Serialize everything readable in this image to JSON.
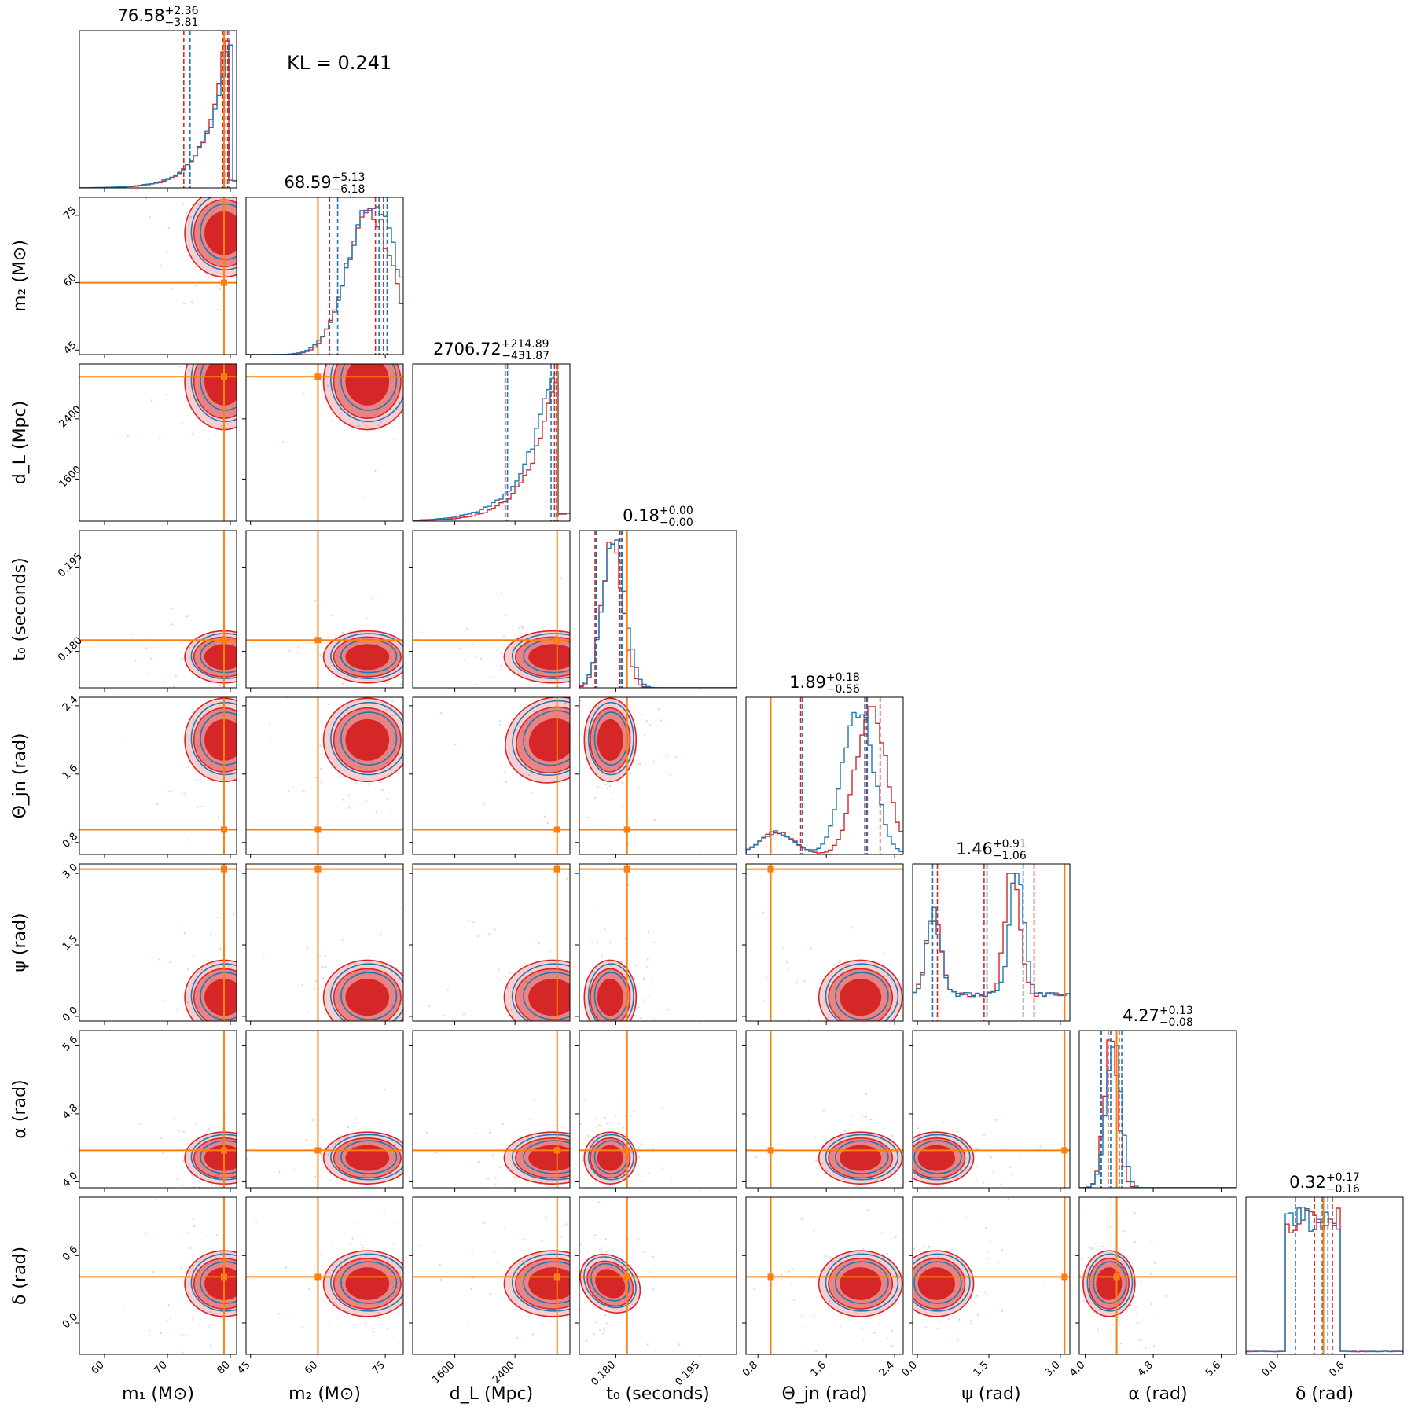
{
  "figure": {
    "annotation": "KL = 0.241"
  },
  "chart_data": {
    "type": "corner",
    "colors": {
      "series_a": "#1f77b4",
      "series_b": "#d62728",
      "truth": "#ff7f0e"
    },
    "params": [
      {
        "key": "m1",
        "label": "m₁ (M⊙)",
        "range": [
          56,
          81
        ],
        "ticks": [
          60,
          70,
          80
        ],
        "tick_labels": [
          "60",
          "70",
          "80"
        ],
        "title_value": "76.58",
        "title_plus": "+2.36",
        "title_minus": "−3.81",
        "truth": 79.0,
        "q_red": [
          72.6,
          78.8,
          79.6
        ],
        "q_blue": [
          73.6,
          79.3,
          79.9
        ],
        "mode": 79.0,
        "width": 3.2
      },
      {
        "key": "m2",
        "label": "m₂ (M⊙)",
        "range": [
          44,
          79
        ],
        "ticks": [
          45,
          60,
          75
        ],
        "tick_labels": [
          "45",
          "60",
          "75"
        ],
        "title_value": "68.59",
        "title_plus": "+5.13",
        "title_minus": "−6.18",
        "truth": 60.0,
        "q_red": [
          62.6,
          72.8,
          74.6
        ],
        "q_blue": [
          64.4,
          73.6,
          75.4
        ],
        "mode": 71.0,
        "width": 5.0
      },
      {
        "key": "dl",
        "label": "d_L (Mpc)",
        "range": [
          1040,
          3130
        ],
        "ticks": [
          1600,
          2400
        ],
        "tick_labels": [
          "1600",
          "2400"
        ],
        "title_value": "2706.72",
        "title_plus": "+214.89",
        "title_minus": "−431.87",
        "truth": 2960,
        "q_red": [
          2270,
          2925,
          2970
        ],
        "q_blue": [
          2300,
          2880,
          2950
        ],
        "mode": 2900,
        "width": 330
      },
      {
        "key": "t0",
        "label": "t₀ (seconds)",
        "range": [
          0.1735,
          0.2015
        ],
        "ticks": [
          0.18,
          0.195
        ],
        "tick_labels": [
          "0.180",
          "0.195"
        ],
        "title_value": "0.18",
        "title_plus": "+0.00",
        "title_minus": "−0.00",
        "truth": 0.182,
        "q_red": [
          0.1763,
          0.1807,
          0.181
        ],
        "q_blue": [
          0.1765,
          0.181,
          0.1812
        ],
        "mode": 0.179,
        "width": 0.0018
      },
      {
        "key": "theta",
        "label": "Θ_jn (rad)",
        "range": [
          0.66,
          2.5
        ],
        "ticks": [
          0.8,
          1.6,
          2.4
        ],
        "tick_labels": [
          "0.8",
          "1.6",
          "2.4"
        ],
        "title_value": "1.89",
        "title_plus": "+0.18",
        "title_minus": "−0.56",
        "truth": 0.95,
        "q_red": [
          1.3,
          2.07,
          2.23
        ],
        "q_blue": [
          1.32,
          2.05,
          2.08
        ],
        "mode": 2.0,
        "width": 0.25
      },
      {
        "key": "psi",
        "label": "ψ (rad)",
        "range": [
          -0.1,
          3.2
        ],
        "ticks": [
          0.0,
          1.5,
          3.0
        ],
        "tick_labels": [
          "0.0",
          "1.5",
          "3.0"
        ],
        "title_value": "1.46",
        "title_plus": "+0.91",
        "title_minus": "−1.06",
        "truth": 3.09,
        "q_red": [
          0.42,
          1.4,
          2.45
        ],
        "q_blue": [
          0.32,
          1.46,
          2.22
        ],
        "mode": 0.4,
        "width": 0.4
      },
      {
        "key": "alpha",
        "label": "α (rad)",
        "range": [
          3.93,
          5.78
        ],
        "ticks": [
          4.0,
          4.8,
          5.6
        ],
        "tick_labels": [
          "4.0",
          "4.8",
          "5.6"
        ],
        "title_value": "4.27",
        "title_plus": "+0.13",
        "title_minus": "−0.08",
        "truth": 4.37,
        "q_red": [
          4.18,
          4.27,
          4.4
        ],
        "q_blue": [
          4.19,
          4.3,
          4.43
        ],
        "mode": 4.28,
        "width": 0.08
      },
      {
        "key": "delta",
        "label": "δ (rad)",
        "range": [
          -0.28,
          1.12
        ],
        "ticks": [
          0.0,
          0.6
        ],
        "tick_labels": [
          "0.0",
          "0.6"
        ],
        "title_value": "0.32",
        "title_plus": "+0.17",
        "title_minus": "−0.16",
        "truth": 0.41,
        "q_red": [
          0.16,
          0.33,
          0.49
        ],
        "q_blue": [
          0.16,
          0.4,
          0.45
        ],
        "mode": 0.35,
        "width": 0.15
      }
    ]
  }
}
